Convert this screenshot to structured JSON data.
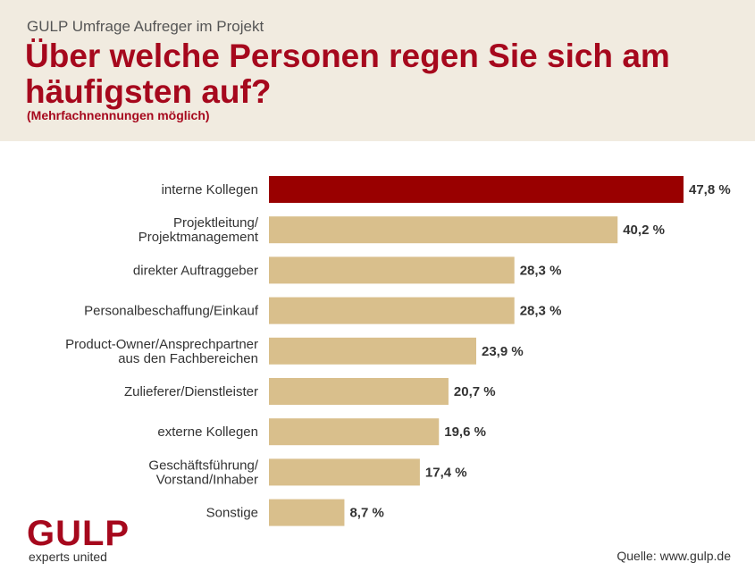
{
  "header": {
    "kicker": "GULP Umfrage Aufreger im Projekt",
    "title": "Über welche Personen regen Sie sich am häufigsten auf?",
    "subtitle": "(Mehrfachnennungen möglich)"
  },
  "footer": {
    "logo": "GULP",
    "tagline": "experts united",
    "source": "Quelle: www.gulp.de"
  },
  "colors": {
    "highlight": "#990000",
    "bar": "#d9bf8c",
    "brand": "#a6081d",
    "header_bg": "#f1ebe0"
  },
  "chart_data": {
    "type": "bar",
    "orientation": "horizontal",
    "categories": [
      [
        "interne Kollegen"
      ],
      [
        "Projektleitung/",
        "Projektmanagement"
      ],
      [
        "direkter Auftraggeber"
      ],
      [
        "Personalbeschaffung/Einkauf"
      ],
      [
        "Product-Owner/Ansprechpartner",
        "aus den Fachbereichen"
      ],
      [
        "Zulieferer/Dienstleister"
      ],
      [
        "externe Kollegen"
      ],
      [
        "Geschäftsführung/",
        "Vorstand/Inhaber"
      ],
      [
        "Sonstige"
      ]
    ],
    "values": [
      47.8,
      40.2,
      28.3,
      28.3,
      23.9,
      20.7,
      19.6,
      17.4,
      8.7
    ],
    "value_labels": [
      "47,8 %",
      "40,2 %",
      "28,3 %",
      "28,3 %",
      "23,9 %",
      "20,7 %",
      "19,6 %",
      "17,4 %",
      "8,7 %"
    ],
    "highlight_index": 0,
    "unit": "%",
    "xlim": [
      0,
      47.8
    ],
    "grid": false
  }
}
